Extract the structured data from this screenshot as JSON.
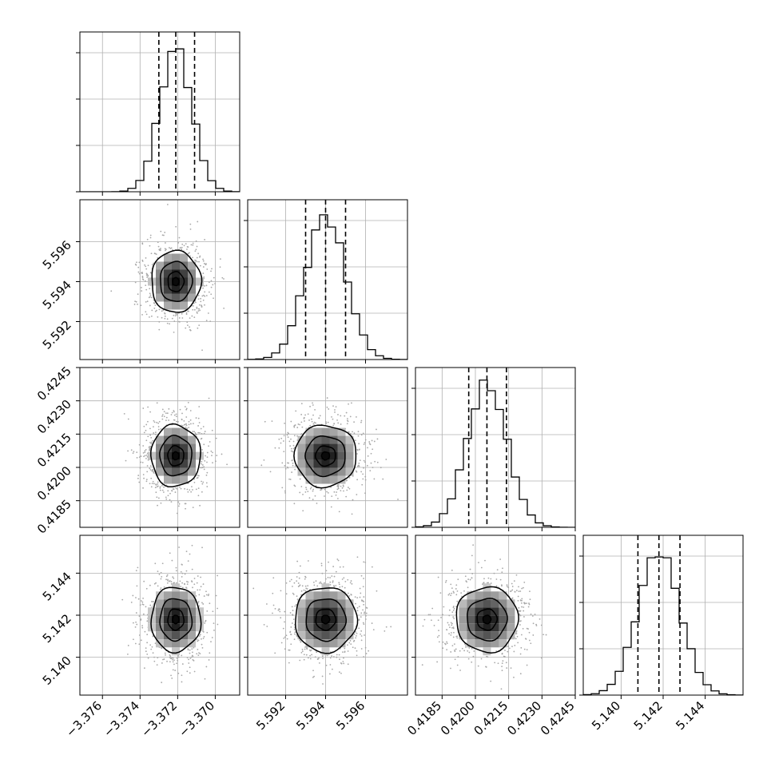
{
  "chart_data": {
    "type": "corner",
    "grid": true,
    "parameters": [
      {
        "range": [
          -3.3772,
          -3.3687
        ],
        "ticks": [
          -3.376,
          -3.374,
          -3.372,
          -3.37
        ],
        "tick_labels": [
          "−3.376",
          "−3.374",
          "−3.372",
          "−3.370"
        ],
        "mean": -3.3721,
        "sigma": 0.00085,
        "quantiles": [
          -3.373,
          -3.3721,
          -3.3711
        ]
      },
      {
        "range": [
          5.5901,
          5.5981
        ],
        "ticks": [
          5.592,
          5.594,
          5.596
        ],
        "tick_labels": [
          "5.592",
          "5.594",
          "5.596"
        ],
        "mean": 5.594,
        "sigma": 0.001,
        "quantiles": [
          5.593,
          5.594,
          5.595
        ]
      },
      {
        "range": [
          0.4173,
          0.4245
        ],
        "ticks": [
          0.4185,
          0.42,
          0.4215,
          0.423,
          0.4245
        ],
        "tick_labels": [
          "0.4185",
          "0.4200",
          "0.4215",
          "0.4230",
          "0.4245"
        ],
        "mean": 0.42052,
        "sigma": 0.0009,
        "quantiles": [
          0.4197,
          0.42052,
          0.4214
        ]
      },
      {
        "range": [
          5.1382,
          5.1458
        ],
        "ticks": [
          5.14,
          5.142,
          5.144
        ],
        "tick_labels": [
          "5.140",
          "5.142",
          "5.144"
        ],
        "mean": 5.1418,
        "sigma": 0.001,
        "quantiles": [
          5.1408,
          5.1418,
          5.1428
        ]
      }
    ],
    "contour_levels": [
      0.2,
      0.5,
      1.0,
      1.55
    ]
  }
}
